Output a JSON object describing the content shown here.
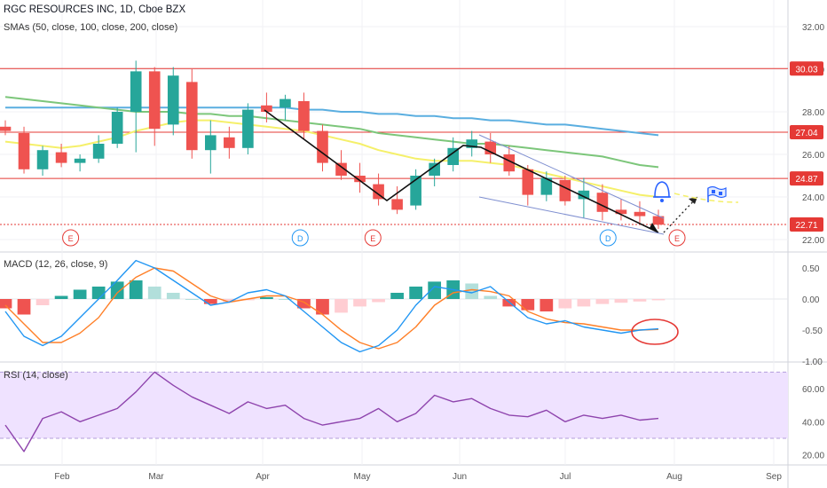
{
  "header": {
    "title": "RGC RESOURCES INC, 1D, Cboe BZX",
    "sma_label": "SMAs (50, close, 100, close, 200, close)",
    "macd_label": "MACD (12, 26, close, 9)",
    "rsi_label": "RSI (14, close)"
  },
  "colors": {
    "candle_up": "#26a69a",
    "candle_down": "#ef5350",
    "sma50": "#f5f06a",
    "sma100": "#7cc67a",
    "sma200": "#5aaee0",
    "macd_line": "#2196f3",
    "signal_line": "#ff7f27",
    "rsi_line": "#8e44ad",
    "rsi_band": "#efe2ff",
    "level_line": "#e53935",
    "trend_arrow": "#111111",
    "annotation_circle": "#e53935",
    "bell_icon": "#2962ff"
  },
  "chart_data": [
    {
      "type": "candlestick",
      "title": "RGC RESOURCES INC, 1D, Cboe BZX",
      "indicator": "SMAs (50, close, 100, close, 200, close)",
      "x_ticks": [
        "Feb",
        "Mar",
        "Apr",
        "May",
        "Jun",
        "Jul",
        "Aug",
        "Sep"
      ],
      "y_ticks": [
        "22.00",
        "24.00",
        "26.00",
        "28.00",
        "30.00",
        "32.00"
      ],
      "ylim": [
        21.5,
        32.5
      ],
      "weekly_ohlc": [
        {
          "x": 0,
          "o": 27.3,
          "h": 27.6,
          "l": 26.9,
          "c": 27.1
        },
        {
          "x": 1,
          "o": 27.0,
          "h": 27.3,
          "l": 25.1,
          "c": 25.3
        },
        {
          "x": 2,
          "o": 25.3,
          "h": 26.4,
          "l": 25.0,
          "c": 26.2
        },
        {
          "x": 3,
          "o": 26.1,
          "h": 26.5,
          "l": 25.4,
          "c": 25.6
        },
        {
          "x": 4,
          "o": 25.6,
          "h": 26.0,
          "l": 25.2,
          "c": 25.8
        },
        {
          "x": 5,
          "o": 25.8,
          "h": 26.9,
          "l": 25.6,
          "c": 26.5
        },
        {
          "x": 6,
          "o": 26.5,
          "h": 28.2,
          "l": 26.3,
          "c": 28.0
        },
        {
          "x": 7,
          "o": 28.0,
          "h": 30.4,
          "l": 26.1,
          "c": 29.9
        },
        {
          "x": 8,
          "o": 29.9,
          "h": 30.1,
          "l": 26.4,
          "c": 27.2
        },
        {
          "x": 9,
          "o": 27.4,
          "h": 30.1,
          "l": 26.9,
          "c": 29.7
        },
        {
          "x": 10,
          "o": 29.4,
          "h": 30.0,
          "l": 25.8,
          "c": 26.2
        },
        {
          "x": 11,
          "o": 26.2,
          "h": 27.6,
          "l": 25.1,
          "c": 26.9
        },
        {
          "x": 12,
          "o": 26.8,
          "h": 27.3,
          "l": 25.8,
          "c": 26.3
        },
        {
          "x": 13,
          "o": 26.3,
          "h": 28.4,
          "l": 26.0,
          "c": 28.1
        },
        {
          "x": 14,
          "o": 28.3,
          "h": 28.9,
          "l": 27.5,
          "c": 28.0
        },
        {
          "x": 15,
          "o": 28.2,
          "h": 28.8,
          "l": 27.6,
          "c": 28.6
        },
        {
          "x": 16,
          "o": 28.5,
          "h": 28.9,
          "l": 26.7,
          "c": 27.1
        },
        {
          "x": 17,
          "o": 27.1,
          "h": 27.4,
          "l": 25.2,
          "c": 25.6
        },
        {
          "x": 18,
          "o": 25.6,
          "h": 26.2,
          "l": 24.8,
          "c": 25.0
        },
        {
          "x": 19,
          "o": 25.0,
          "h": 25.6,
          "l": 24.2,
          "c": 24.7
        },
        {
          "x": 20,
          "o": 24.6,
          "h": 25.1,
          "l": 23.6,
          "c": 23.9
        },
        {
          "x": 21,
          "o": 23.9,
          "h": 24.5,
          "l": 23.2,
          "c": 23.4
        },
        {
          "x": 22,
          "o": 23.6,
          "h": 25.3,
          "l": 23.4,
          "c": 25.0
        },
        {
          "x": 23,
          "o": 25.0,
          "h": 25.8,
          "l": 24.5,
          "c": 25.6
        },
        {
          "x": 24,
          "o": 25.5,
          "h": 26.8,
          "l": 25.2,
          "c": 26.3
        },
        {
          "x": 25,
          "o": 26.3,
          "h": 27.1,
          "l": 25.9,
          "c": 26.7
        },
        {
          "x": 26,
          "o": 26.6,
          "h": 27.0,
          "l": 25.6,
          "c": 26.0
        },
        {
          "x": 27,
          "o": 26.0,
          "h": 26.4,
          "l": 25.0,
          "c": 25.2
        },
        {
          "x": 28,
          "o": 25.3,
          "h": 25.5,
          "l": 23.6,
          "c": 24.1
        },
        {
          "x": 29,
          "o": 24.1,
          "h": 25.2,
          "l": 23.8,
          "c": 24.9
        },
        {
          "x": 30,
          "o": 24.8,
          "h": 25.0,
          "l": 23.6,
          "c": 23.8
        },
        {
          "x": 31,
          "o": 23.9,
          "h": 24.9,
          "l": 23.0,
          "c": 24.3
        },
        {
          "x": 32,
          "o": 24.2,
          "h": 24.6,
          "l": 22.9,
          "c": 23.3
        },
        {
          "x": 33,
          "o": 23.4,
          "h": 23.9,
          "l": 22.9,
          "c": 23.2
        },
        {
          "x": 34,
          "o": 23.3,
          "h": 23.8,
          "l": 22.8,
          "c": 23.1
        },
        {
          "x": 35,
          "o": 23.1,
          "h": 23.4,
          "l": 22.5,
          "c": 22.7
        }
      ],
      "sma50": [
        26.6,
        26.5,
        26.4,
        26.3,
        26.4,
        26.6,
        26.8,
        27.1,
        27.3,
        27.5,
        27.6,
        27.6,
        27.5,
        27.4,
        27.3,
        27.2,
        27.1,
        26.9,
        26.7,
        26.5,
        26.2,
        26.0,
        25.8,
        25.7,
        25.7,
        25.7,
        25.6,
        25.5,
        25.3,
        25.1,
        24.9,
        24.7,
        24.5,
        24.3,
        24.1,
        24.0
      ],
      "sma100": [
        28.7,
        28.6,
        28.5,
        28.4,
        28.3,
        28.2,
        28.1,
        28.0,
        28.0,
        28.0,
        27.9,
        27.9,
        27.8,
        27.8,
        27.7,
        27.6,
        27.5,
        27.4,
        27.3,
        27.2,
        27.0,
        26.9,
        26.8,
        26.7,
        26.6,
        26.5,
        26.5,
        26.4,
        26.3,
        26.2,
        26.1,
        26.0,
        25.9,
        25.7,
        25.5,
        25.4
      ],
      "sma200": [
        28.2,
        28.2,
        28.2,
        28.2,
        28.2,
        28.2,
        28.2,
        28.2,
        28.2,
        28.2,
        28.2,
        28.2,
        28.2,
        28.2,
        28.2,
        28.2,
        28.1,
        28.1,
        28.0,
        28.0,
        27.9,
        27.9,
        27.8,
        27.8,
        27.7,
        27.7,
        27.6,
        27.6,
        27.5,
        27.4,
        27.4,
        27.3,
        27.2,
        27.1,
        27.0,
        26.9
      ],
      "horizontal_levels": [
        30.03,
        27.04,
        24.87,
        22.71
      ],
      "price_labels": [
        "30.03",
        "27.04",
        "24.87",
        "22.71"
      ],
      "event_markers": [
        {
          "label": "E",
          "x": 3.5
        },
        {
          "label": "D",
          "x": 15.8
        },
        {
          "label": "E",
          "x": 19.7
        },
        {
          "label": "D",
          "x": 32.3
        },
        {
          "label": "E",
          "x": 36.0
        }
      ]
    },
    {
      "type": "line",
      "title": "MACD (12, 26, close, 9)",
      "y_ticks": [
        "0.50",
        "0.00",
        "-0.50",
        "-1.00"
      ],
      "ylim": [
        -1.0,
        0.7
      ],
      "histogram": [
        -0.15,
        -0.25,
        -0.1,
        0.05,
        0.15,
        0.2,
        0.28,
        0.3,
        0.2,
        0.1,
        0.0,
        -0.08,
        -0.05,
        -0.02,
        0.03,
        0.0,
        -0.15,
        -0.25,
        -0.22,
        -0.12,
        -0.05,
        0.1,
        0.2,
        0.28,
        0.3,
        0.25,
        0.05,
        -0.12,
        -0.18,
        -0.2,
        -0.15,
        -0.12,
        -0.08,
        -0.06,
        -0.04,
        -0.02
      ],
      "macd": [
        -0.2,
        -0.6,
        -0.75,
        -0.6,
        -0.3,
        0.0,
        0.3,
        0.62,
        0.5,
        0.3,
        0.1,
        -0.1,
        -0.05,
        0.1,
        0.15,
        0.05,
        -0.2,
        -0.45,
        -0.7,
        -0.85,
        -0.75,
        -0.5,
        -0.1,
        0.2,
        0.15,
        0.1,
        0.2,
        -0.05,
        -0.3,
        -0.4,
        -0.35,
        -0.45,
        -0.5,
        -0.55,
        -0.5,
        -0.48
      ],
      "signal": [
        -0.1,
        -0.4,
        -0.7,
        -0.7,
        -0.55,
        -0.3,
        0.1,
        0.35,
        0.5,
        0.45,
        0.25,
        0.05,
        -0.05,
        0.0,
        0.05,
        0.05,
        -0.05,
        -0.25,
        -0.5,
        -0.7,
        -0.8,
        -0.7,
        -0.45,
        -0.1,
        0.1,
        0.15,
        0.12,
        0.05,
        -0.2,
        -0.32,
        -0.38,
        -0.4,
        -0.45,
        -0.5,
        -0.5,
        -0.49
      ]
    },
    {
      "type": "line",
      "title": "RSI (14, close)",
      "y_ticks": [
        "60.00",
        "40.00",
        "20.00"
      ],
      "ylim": [
        15,
        75
      ],
      "band": [
        30,
        70
      ],
      "rsi": [
        38,
        22,
        42,
        46,
        40,
        44,
        48,
        58,
        70,
        62,
        55,
        50,
        45,
        52,
        48,
        50,
        42,
        38,
        40,
        42,
        48,
        40,
        45,
        56,
        52,
        54,
        48,
        44,
        43,
        47,
        40,
        44,
        42,
        44,
        41,
        42
      ]
    }
  ]
}
